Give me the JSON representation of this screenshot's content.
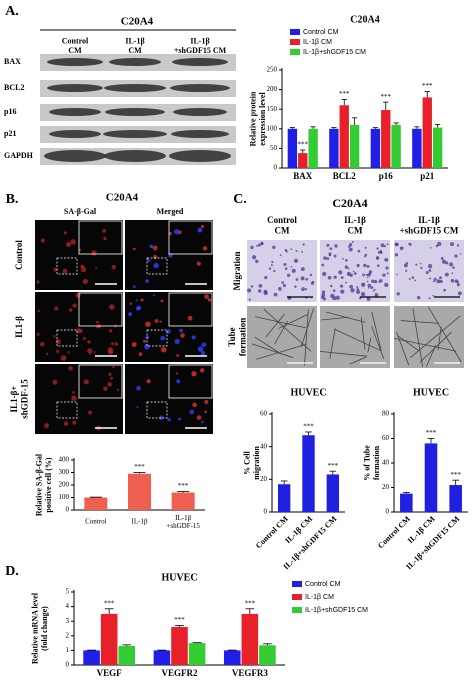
{
  "panels": {
    "A": {
      "label": "A.",
      "title": "C20A4",
      "columns": [
        "Control CM",
        "IL-1β CM",
        "IL-1β +shGDF15 CM"
      ],
      "rows": [
        "BAX",
        "BCL2",
        "p16",
        "p21",
        "GAPDH"
      ]
    },
    "B": {
      "label": "B.",
      "title": "C20A4",
      "columns": [
        "SA-β-Gal",
        "Merged"
      ],
      "rows": [
        "Control",
        "IL1-β",
        "IL1-β+ shGDF-15"
      ]
    },
    "C": {
      "label": "C.",
      "title": "C20A4",
      "columns": [
        "Control CM",
        "IL-1β CM",
        "IL-1β +shGDF15 CM"
      ],
      "rows": [
        "Migration",
        "Tube formation"
      ]
    },
    "D": {
      "label": "D."
    }
  },
  "chart_data": [
    {
      "type": "bar",
      "title": "C20A4",
      "y_label": "Relative protein expression level",
      "categories": [
        "BAX",
        "BCL2",
        "p16",
        "p21"
      ],
      "series": [
        {
          "name": "Control CM",
          "color": "#1f1fe6",
          "values": [
            100,
            100,
            100,
            100
          ],
          "errors": [
            3,
            3,
            3,
            5
          ]
        },
        {
          "name": "IL-1β CM",
          "color": "#e8202a",
          "values": [
            38,
            160,
            148,
            180
          ],
          "errors": [
            8,
            15,
            20,
            15
          ],
          "significance": [
            "***",
            "***",
            "***",
            "***"
          ]
        },
        {
          "name": "IL-1β+shGDF15 CM",
          "color": "#33cc33",
          "values": [
            100,
            110,
            110,
            103
          ],
          "errors": [
            5,
            18,
            5,
            8
          ]
        }
      ],
      "ylim": [
        0,
        250
      ],
      "yticks": [
        0,
        50,
        100,
        150,
        200,
        250
      ],
      "legend": "top-left"
    },
    {
      "type": "bar",
      "y_label": "Relative SA-β-Gal positive cell (%)",
      "categories": [
        "Control",
        "IL-1β",
        "IL-1β +shGDF-15"
      ],
      "values": [
        100,
        290,
        140
      ],
      "errors": [
        3,
        10,
        8
      ],
      "significance": [
        null,
        "***",
        "***"
      ],
      "color": "#f06050",
      "ylim": [
        0,
        400
      ],
      "yticks": [
        0,
        100,
        200,
        300,
        400
      ]
    },
    {
      "type": "bar",
      "title": "HUVEC",
      "y_label": "% Cell migration",
      "categories": [
        "Control CM",
        "IL-1β CM",
        "IL-1β+shGDF15 CM"
      ],
      "values": [
        17,
        47,
        23
      ],
      "errors": [
        2,
        2,
        2
      ],
      "significance": [
        null,
        "***",
        "***"
      ],
      "color": "#2020e0",
      "ylim": [
        0,
        60
      ],
      "yticks": [
        0,
        20,
        40,
        60
      ]
    },
    {
      "type": "bar",
      "title": "HUVEC",
      "y_label": "% of Tube formation",
      "categories": [
        "Control CM",
        "IL-1β CM",
        "IL-1β+shGDF15 CM"
      ],
      "values": [
        15,
        56,
        22
      ],
      "errors": [
        1,
        4,
        4
      ],
      "significance": [
        null,
        "***",
        "***"
      ],
      "color": "#2020e0",
      "ylim": [
        0,
        80
      ],
      "yticks": [
        0,
        20,
        40,
        60,
        80
      ]
    },
    {
      "type": "bar",
      "title": "HUVEC",
      "y_label": "Relative mRNA level (fold change)",
      "categories": [
        "VEGF",
        "VEGFR2",
        "VEGFR3"
      ],
      "series": [
        {
          "name": "Control CM",
          "color": "#1f1fe6",
          "values": [
            1,
            1,
            1
          ],
          "errors": [
            0.02,
            0.02,
            0.02
          ]
        },
        {
          "name": "IL-1β CM",
          "color": "#e8202a",
          "values": [
            3.5,
            2.6,
            3.5
          ],
          "errors": [
            0.35,
            0.1,
            0.35
          ],
          "significance": [
            "***",
            "***",
            "***"
          ]
        },
        {
          "name": "IL-1β+shGDF15 CM",
          "color": "#33cc33",
          "values": [
            1.3,
            1.5,
            1.35
          ],
          "errors": [
            0.08,
            0.03,
            0.1
          ]
        }
      ],
      "ylim": [
        0,
        5
      ],
      "yticks": [
        0,
        1,
        2,
        3,
        4,
        5
      ],
      "legend": "top-right"
    }
  ]
}
